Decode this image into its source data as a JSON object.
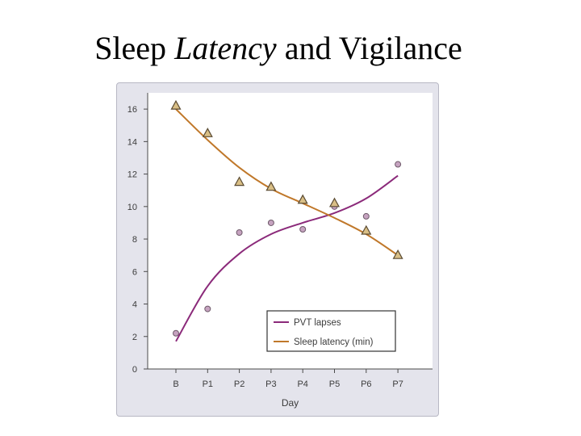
{
  "slide": {
    "title_plain_1": "Sleep ",
    "title_italic": "Latency",
    "title_plain_2": " and Vigilance"
  },
  "chart_data": {
    "type": "scatter",
    "title": "",
    "xlabel": "Day",
    "ylabel": "",
    "categories": [
      "B",
      "P1",
      "P2",
      "P3",
      "P4",
      "P5",
      "P6",
      "P7"
    ],
    "ylim": [
      0,
      17
    ],
    "yticks": [
      0,
      2,
      4,
      6,
      8,
      10,
      12,
      14,
      16
    ],
    "grid": false,
    "legend_position": "bottom-right",
    "series": [
      {
        "name": "PVT lapses",
        "marker": "circle",
        "color": "#8b2a7a",
        "values": [
          2.2,
          3.7,
          8.4,
          9.0,
          8.6,
          10.0,
          9.4,
          12.6
        ],
        "fit": [
          1.7,
          5.1,
          7.1,
          8.3,
          9.0,
          9.6,
          10.5,
          11.9
        ]
      },
      {
        "name": "Sleep latency (min)",
        "marker": "triangle",
        "color": "#c0782a",
        "values": [
          16.2,
          14.5,
          11.5,
          11.2,
          10.4,
          10.2,
          8.5,
          7.0
        ],
        "fit": [
          16.0,
          14.1,
          12.4,
          11.1,
          10.2,
          9.3,
          8.3,
          7.0
        ]
      }
    ]
  }
}
